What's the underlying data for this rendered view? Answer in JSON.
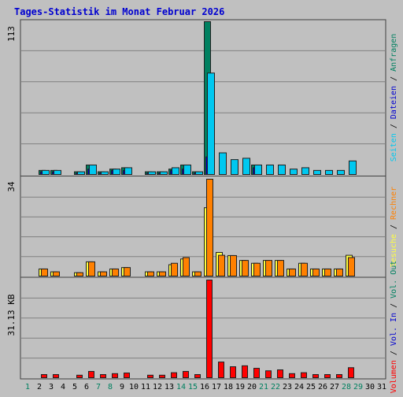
{
  "title": "Tages-Statistik im Monat Februar 2026",
  "colors": {
    "background": "#c0c0c0",
    "title": "#0000d0",
    "anfragen": "#008060",
    "dateien": "#0000d0",
    "seiten": "#00c8f0",
    "besuche": "#ffff40",
    "rechner": "#ff8000",
    "vol_out": "#008060",
    "vol_in": "#0000d0",
    "volumen": "#ff0000",
    "weekend": "#008060"
  },
  "chart_data": [
    {
      "type": "bar",
      "panel": "top",
      "max_label": "113",
      "ylim": [
        0,
        113
      ],
      "x": [
        1,
        2,
        3,
        4,
        5,
        6,
        7,
        8,
        9,
        10,
        11,
        12,
        13,
        14,
        15,
        16,
        17,
        18,
        19,
        20,
        21,
        22,
        23,
        24,
        25,
        26,
        27,
        28,
        29,
        30,
        31
      ],
      "series": [
        {
          "name": "Anfragen",
          "values": [
            null,
            3,
            3,
            null,
            2,
            7,
            2,
            4,
            5,
            null,
            2,
            2,
            4,
            7,
            2,
            113,
            null,
            null,
            null,
            7,
            null,
            null,
            null,
            null,
            null,
            null,
            null,
            null,
            null,
            null,
            null
          ]
        },
        {
          "name": "Dateien",
          "values": [
            null,
            2,
            2,
            null,
            1,
            4,
            1,
            3,
            3,
            null,
            1,
            1,
            3,
            4,
            1,
            13,
            null,
            null,
            null,
            5,
            null,
            null,
            null,
            null,
            null,
            null,
            null,
            null,
            null,
            null,
            null
          ]
        },
        {
          "name": "Seiten",
          "values": [
            null,
            3,
            3,
            null,
            2,
            7,
            2,
            4,
            5,
            null,
            2,
            2,
            5,
            7,
            2,
            75,
            16,
            11,
            12,
            7,
            7,
            7,
            4,
            5,
            3,
            3,
            3,
            10,
            null,
            null,
            null
          ]
        }
      ],
      "legend": [
        "Anfragen",
        "Dateien",
        "Seiten"
      ]
    },
    {
      "type": "bar",
      "panel": "middle",
      "max_label": "34",
      "ylim": [
        0,
        34
      ],
      "x": [
        1,
        2,
        3,
        4,
        5,
        6,
        7,
        8,
        9,
        10,
        11,
        12,
        13,
        14,
        15,
        16,
        17,
        18,
        19,
        20,
        21,
        22,
        23,
        24,
        25,
        26,
        27,
        28,
        29,
        30,
        31
      ],
      "series": [
        {
          "name": "Besuche",
          "values": [
            null,
            2.5,
            1.5,
            null,
            1.2,
            5,
            1.5,
            2.5,
            3,
            null,
            1.5,
            1.5,
            4,
            6,
            1.5,
            24,
            8.3,
            7.2,
            5.5,
            4.5,
            5.5,
            5.5,
            2.5,
            4.5,
            2.5,
            2.5,
            2.5,
            7.3,
            null,
            null,
            null
          ]
        },
        {
          "name": "Rechner",
          "values": [
            null,
            2.5,
            1.5,
            null,
            1.2,
            5,
            1.5,
            2.5,
            3,
            null,
            1.5,
            1.5,
            4.5,
            6.5,
            1.5,
            34,
            7.3,
            7.2,
            5.5,
            4.5,
            5.5,
            5.5,
            2.5,
            4.5,
            2.5,
            2.5,
            2.5,
            6.5,
            null,
            null,
            null
          ]
        }
      ],
      "legend": [
        "Besuche",
        "Rechner"
      ]
    },
    {
      "type": "bar",
      "panel": "bottom",
      "max_label": "31.13 KB",
      "ylim": [
        0,
        31.13
      ],
      "x": [
        1,
        2,
        3,
        4,
        5,
        6,
        7,
        8,
        9,
        10,
        11,
        12,
        13,
        14,
        15,
        16,
        17,
        18,
        19,
        20,
        21,
        22,
        23,
        24,
        25,
        26,
        27,
        28,
        29,
        30,
        31
      ],
      "series": [
        {
          "name": "Volumen",
          "values": [
            null,
            1,
            1,
            null,
            0.8,
            2,
            1,
            1.3,
            1.5,
            null,
            0.8,
            0.8,
            1.6,
            2,
            1,
            31.13,
            5,
            3.5,
            3.8,
            3,
            2.2,
            2.5,
            1.3,
            1.6,
            1,
            1,
            1,
            3.2,
            null,
            null,
            null
          ]
        }
      ],
      "legend": [
        "Vol. Out",
        "Vol. In",
        "Volumen"
      ]
    }
  ],
  "x_labels": [
    "1",
    "2",
    "3",
    "4",
    "5",
    "6",
    "7",
    "8",
    "9",
    "10",
    "11",
    "12",
    "13",
    "14",
    "15",
    "16",
    "17",
    "18",
    "19",
    "20",
    "21",
    "22",
    "23",
    "24",
    "25",
    "26",
    "27",
    "28",
    "29",
    "30",
    "31"
  ],
  "weekend_days": [
    1,
    7,
    8,
    14,
    15,
    21,
    22,
    28,
    29
  ]
}
